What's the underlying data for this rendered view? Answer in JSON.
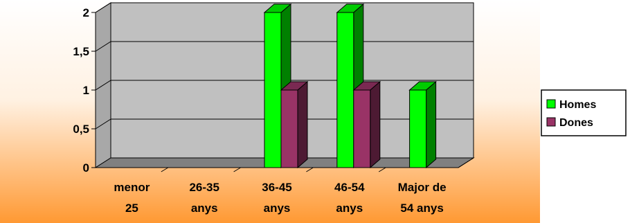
{
  "chart_data": {
    "type": "bar",
    "categories": [
      [
        "menor",
        "25"
      ],
      [
        "26-35",
        "anys"
      ],
      [
        "36-45",
        "anys"
      ],
      [
        "46-54",
        "anys"
      ],
      [
        "Major de",
        "54 anys"
      ]
    ],
    "series": [
      {
        "name": "Homes",
        "values": [
          0,
          0,
          2,
          2,
          1
        ],
        "color": "#00ff00",
        "dark": "#008000",
        "top": "#00cc00"
      },
      {
        "name": "Dones",
        "values": [
          0,
          0,
          1,
          1,
          0
        ],
        "color": "#993366",
        "dark": "#4d1a33",
        "top": "#7a2952"
      }
    ],
    "y_ticks": [
      "0",
      "0,5",
      "1",
      "1,5",
      "2"
    ],
    "ylim": [
      0,
      2
    ],
    "grid": true,
    "legend_position": "right",
    "colors": {
      "plot_wall": "#c0c0c0",
      "floor": "#808080",
      "background_top": "#ffffff",
      "background_bottom": "#ff9933"
    }
  }
}
